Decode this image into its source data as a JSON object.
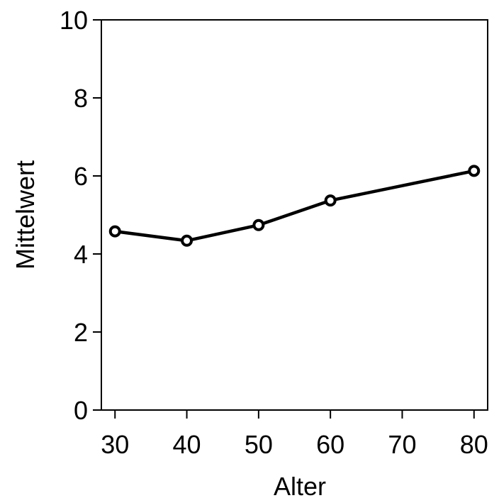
{
  "chart_data": {
    "type": "line",
    "title": "",
    "xlabel": "Alter",
    "ylabel": "Mittelwert",
    "xlim": [
      28.1,
      81.9
    ],
    "ylim": [
      0,
      10
    ],
    "x_ticks": [
      30,
      40,
      50,
      60,
      70,
      80
    ],
    "y_ticks": [
      0,
      2,
      4,
      6,
      8,
      10
    ],
    "grid": false,
    "legend": "none",
    "series": [
      {
        "x": [
          30,
          40,
          50,
          60,
          80
        ],
        "y": [
          4.58,
          4.34,
          4.74,
          5.37,
          6.13
        ]
      }
    ],
    "colors": {
      "line": "#000000",
      "marker_fill": "#ffffff",
      "axis": "#000000"
    }
  }
}
